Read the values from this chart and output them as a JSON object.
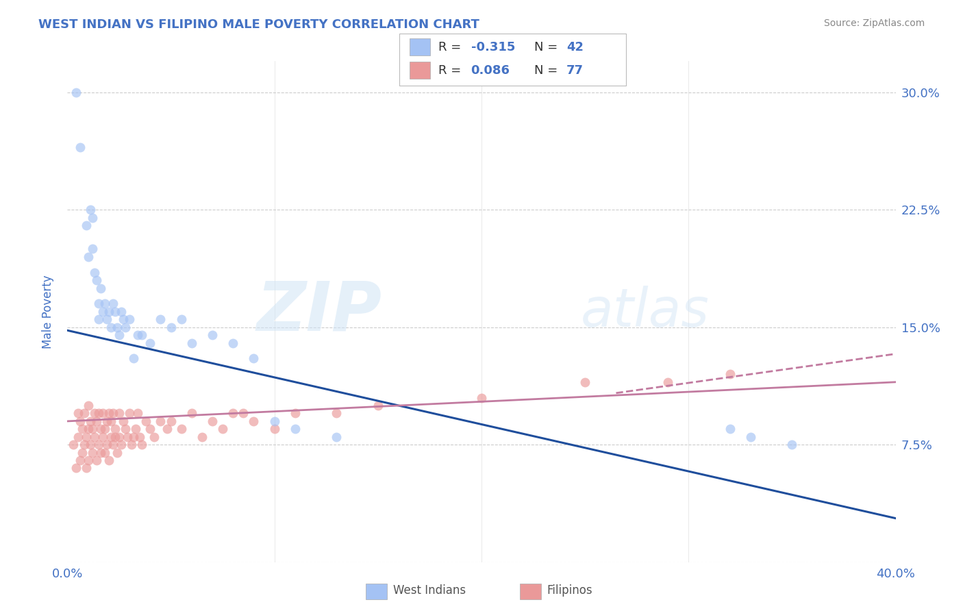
{
  "title": "WEST INDIAN VS FILIPINO MALE POVERTY CORRELATION CHART",
  "source": "Source: ZipAtlas.com",
  "ylabel": "Male Poverty",
  "xlim": [
    0.0,
    0.4
  ],
  "ylim": [
    0.0,
    0.32
  ],
  "xticks": [
    0.0,
    0.1,
    0.2,
    0.3,
    0.4
  ],
  "xticklabels": [
    "0.0%",
    "",
    "",
    "",
    "40.0%"
  ],
  "yticks": [
    0.0,
    0.075,
    0.15,
    0.225,
    0.3
  ],
  "yticklabels": [
    "",
    "7.5%",
    "15.0%",
    "22.5%",
    "30.0%"
  ],
  "grid_color": "#cccccc",
  "background_color": "#ffffff",
  "title_color": "#4472c4",
  "title_fontsize": 13,
  "axis_label_color": "#4472c4",
  "tick_color": "#4472c4",
  "watermark_zip": "ZIP",
  "watermark_atlas": "atlas",
  "west_indian_R": -0.315,
  "west_indian_N": 42,
  "filipino_R": 0.086,
  "filipino_N": 77,
  "west_indian_color": "#a4c2f4",
  "filipino_color": "#ea9999",
  "west_indian_line_color": "#1f4e9c",
  "filipino_line_color": "#c27ba0",
  "legend_color": "#4472c4",
  "wi_line_x0": 0.0,
  "wi_line_y0": 0.148,
  "wi_line_x1": 0.4,
  "wi_line_y1": 0.028,
  "fi_line_solid_x0": 0.0,
  "fi_line_solid_y0": 0.09,
  "fi_line_solid_x1": 0.4,
  "fi_line_solid_y1": 0.115,
  "fi_line_dash_x0": 0.265,
  "fi_line_dash_y0": 0.108,
  "fi_line_dash_x1": 0.4,
  "fi_line_dash_y1": 0.133,
  "west_indian_x": [
    0.004,
    0.006,
    0.009,
    0.01,
    0.011,
    0.012,
    0.012,
    0.013,
    0.014,
    0.015,
    0.015,
    0.016,
    0.017,
    0.018,
    0.019,
    0.02,
    0.021,
    0.022,
    0.023,
    0.024,
    0.025,
    0.026,
    0.027,
    0.028,
    0.03,
    0.032,
    0.034,
    0.036,
    0.04,
    0.045,
    0.05,
    0.055,
    0.06,
    0.07,
    0.08,
    0.09,
    0.1,
    0.11,
    0.13,
    0.32,
    0.33,
    0.35
  ],
  "west_indian_y": [
    0.3,
    0.265,
    0.215,
    0.195,
    0.225,
    0.22,
    0.2,
    0.185,
    0.18,
    0.165,
    0.155,
    0.175,
    0.16,
    0.165,
    0.155,
    0.16,
    0.15,
    0.165,
    0.16,
    0.15,
    0.145,
    0.16,
    0.155,
    0.15,
    0.155,
    0.13,
    0.145,
    0.145,
    0.14,
    0.155,
    0.15,
    0.155,
    0.14,
    0.145,
    0.14,
    0.13,
    0.09,
    0.085,
    0.08,
    0.085,
    0.08,
    0.075
  ],
  "filipino_x": [
    0.003,
    0.004,
    0.005,
    0.005,
    0.006,
    0.006,
    0.007,
    0.007,
    0.008,
    0.008,
    0.009,
    0.009,
    0.01,
    0.01,
    0.01,
    0.011,
    0.011,
    0.012,
    0.012,
    0.013,
    0.013,
    0.014,
    0.014,
    0.015,
    0.015,
    0.016,
    0.016,
    0.017,
    0.017,
    0.018,
    0.018,
    0.019,
    0.019,
    0.02,
    0.02,
    0.021,
    0.021,
    0.022,
    0.022,
    0.023,
    0.023,
    0.024,
    0.025,
    0.025,
    0.026,
    0.027,
    0.028,
    0.029,
    0.03,
    0.031,
    0.032,
    0.033,
    0.034,
    0.035,
    0.036,
    0.038,
    0.04,
    0.042,
    0.045,
    0.048,
    0.05,
    0.055,
    0.06,
    0.065,
    0.07,
    0.075,
    0.08,
    0.085,
    0.09,
    0.1,
    0.11,
    0.13,
    0.15,
    0.2,
    0.25,
    0.29,
    0.32
  ],
  "filipino_y": [
    0.075,
    0.06,
    0.08,
    0.095,
    0.065,
    0.09,
    0.07,
    0.085,
    0.075,
    0.095,
    0.06,
    0.08,
    0.065,
    0.085,
    0.1,
    0.075,
    0.09,
    0.07,
    0.085,
    0.08,
    0.095,
    0.065,
    0.09,
    0.075,
    0.095,
    0.07,
    0.085,
    0.08,
    0.095,
    0.07,
    0.085,
    0.075,
    0.09,
    0.065,
    0.095,
    0.08,
    0.09,
    0.075,
    0.095,
    0.08,
    0.085,
    0.07,
    0.08,
    0.095,
    0.075,
    0.09,
    0.085,
    0.08,
    0.095,
    0.075,
    0.08,
    0.085,
    0.095,
    0.08,
    0.075,
    0.09,
    0.085,
    0.08,
    0.09,
    0.085,
    0.09,
    0.085,
    0.095,
    0.08,
    0.09,
    0.085,
    0.095,
    0.095,
    0.09,
    0.085,
    0.095,
    0.095,
    0.1,
    0.105,
    0.115,
    0.115,
    0.12
  ]
}
